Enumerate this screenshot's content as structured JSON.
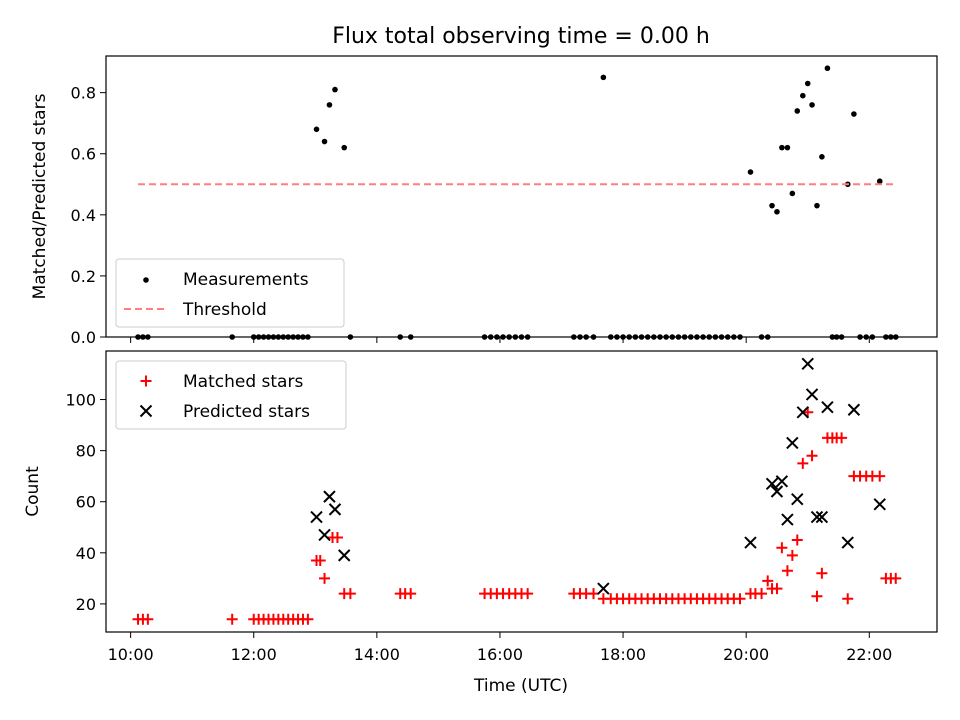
{
  "figure": {
    "title": "Flux total observing time = 0.00 h",
    "xlabel": "Time (UTC)"
  },
  "chart_data": [
    {
      "panel": "top",
      "type": "scatter",
      "ylabel": "Matched/Predicted stars",
      "xlim": [
        9.6,
        23.1
      ],
      "ylim": [
        0,
        0.92
      ],
      "yticks": [
        0.0,
        0.2,
        0.4,
        0.6,
        0.8
      ],
      "ytick_labels": [
        "0.0",
        "0.2",
        "0.4",
        "0.6",
        "0.8"
      ],
      "legend_position": "lower-left",
      "series": [
        {
          "name": "Measurements",
          "marker": "dot",
          "color": "#000000",
          "x": [
            10.12,
            10.2,
            10.28,
            11.65,
            12.0,
            12.08,
            12.16,
            12.24,
            12.32,
            12.4,
            12.48,
            12.56,
            12.64,
            12.72,
            12.8,
            12.88,
            13.02,
            13.15,
            13.23,
            13.32,
            13.47,
            13.57,
            14.38,
            14.55,
            15.75,
            15.85,
            15.95,
            16.05,
            16.15,
            16.25,
            16.35,
            16.45,
            17.2,
            17.3,
            17.4,
            17.52,
            17.68,
            17.8,
            17.9,
            18.0,
            18.1,
            18.2,
            18.3,
            18.4,
            18.5,
            18.6,
            18.7,
            18.8,
            18.9,
            19.0,
            19.1,
            19.2,
            19.3,
            19.4,
            19.5,
            19.6,
            19.7,
            19.8,
            19.9,
            20.07,
            20.25,
            20.35,
            20.42,
            20.5,
            20.58,
            20.67,
            20.75,
            20.83,
            20.92,
            21.0,
            21.07,
            21.15,
            21.23,
            21.32,
            21.4,
            21.47,
            21.55,
            21.65,
            21.75,
            21.85,
            21.95,
            22.05,
            22.17,
            22.27,
            22.35,
            22.43
          ],
          "y": [
            0,
            0,
            0,
            0,
            0,
            0,
            0,
            0,
            0,
            0,
            0,
            0,
            0,
            0,
            0,
            0,
            0.68,
            0.64,
            0.76,
            0.81,
            0.62,
            0,
            0,
            0,
            0,
            0,
            0,
            0,
            0,
            0,
            0,
            0,
            0,
            0,
            0,
            0,
            0.85,
            0,
            0,
            0,
            0,
            0,
            0,
            0,
            0,
            0,
            0,
            0,
            0,
            0,
            0,
            0,
            0,
            0,
            0,
            0,
            0,
            0,
            0,
            0.54,
            0,
            0,
            0.43,
            0.41,
            0.62,
            0.62,
            0.47,
            0.74,
            0.79,
            0.83,
            0.76,
            0.43,
            0.59,
            0.88,
            0,
            0,
            0,
            0.5,
            0.73,
            0,
            0,
            0,
            0.51,
            0,
            0,
            0
          ]
        },
        {
          "name": "Threshold",
          "type": "line",
          "style": "dashed",
          "color": "#ff7f7f",
          "x": [
            10.12,
            22.43
          ],
          "y": [
            0.5,
            0.5
          ]
        }
      ]
    },
    {
      "panel": "bottom",
      "type": "scatter",
      "ylabel": "Count",
      "xlim": [
        9.6,
        23.1
      ],
      "ylim": [
        9,
        119
      ],
      "yticks": [
        20,
        40,
        60,
        80,
        100
      ],
      "ytick_labels": [
        "20",
        "40",
        "60",
        "80",
        "100"
      ],
      "xticks": [
        10,
        12,
        14,
        16,
        18,
        20,
        22
      ],
      "xtick_labels": [
        "10:00",
        "12:00",
        "14:00",
        "16:00",
        "18:00",
        "20:00",
        "22:00"
      ],
      "legend_position": "upper-left",
      "series": [
        {
          "name": "Matched stars",
          "marker": "plus",
          "color": "#ff0000",
          "x": [
            10.12,
            10.2,
            10.28,
            11.65,
            12.0,
            12.08,
            12.16,
            12.24,
            12.32,
            12.4,
            12.48,
            12.56,
            12.64,
            12.72,
            12.8,
            12.88,
            13.02,
            13.08,
            13.15,
            13.28,
            13.36,
            13.47,
            13.57,
            14.38,
            14.46,
            14.55,
            15.75,
            15.85,
            15.95,
            16.05,
            16.15,
            16.25,
            16.35,
            16.45,
            17.2,
            17.3,
            17.4,
            17.52,
            17.68,
            17.8,
            17.9,
            18.0,
            18.1,
            18.2,
            18.3,
            18.4,
            18.5,
            18.6,
            18.7,
            18.8,
            18.9,
            19.0,
            19.1,
            19.2,
            19.3,
            19.4,
            19.5,
            19.6,
            19.7,
            19.8,
            19.9,
            20.07,
            20.15,
            20.25,
            20.35,
            20.42,
            20.5,
            20.58,
            20.67,
            20.75,
            20.83,
            20.92,
            21.0,
            21.07,
            21.15,
            21.23,
            21.32,
            21.4,
            21.47,
            21.55,
            21.65,
            21.75,
            21.85,
            21.95,
            22.05,
            22.17,
            22.27,
            22.35,
            22.43
          ],
          "y": [
            14,
            14,
            14,
            14,
            14,
            14,
            14,
            14,
            14,
            14,
            14,
            14,
            14,
            14,
            14,
            14,
            37,
            37,
            30,
            46,
            46,
            24,
            24,
            24,
            24,
            24,
            24,
            24,
            24,
            24,
            24,
            24,
            24,
            24,
            24,
            24,
            24,
            24,
            22,
            22,
            22,
            22,
            22,
            22,
            22,
            22,
            22,
            22,
            22,
            22,
            22,
            22,
            22,
            22,
            22,
            22,
            22,
            22,
            22,
            22,
            22,
            24,
            24,
            24,
            29,
            26,
            26,
            42,
            33,
            39,
            45,
            75,
            95,
            78,
            23,
            32,
            85,
            85,
            85,
            85,
            22,
            70,
            70,
            70,
            70,
            70,
            30,
            30,
            30
          ]
        },
        {
          "name": "Predicted stars",
          "marker": "x",
          "color": "#000000",
          "x": [
            13.02,
            13.15,
            13.23,
            13.32,
            13.47,
            17.68,
            20.07,
            20.42,
            20.5,
            20.58,
            20.67,
            20.75,
            20.83,
            20.92,
            21.0,
            21.07,
            21.15,
            21.23,
            21.32,
            21.65,
            21.75,
            22.17
          ],
          "y": [
            54,
            47,
            62,
            57,
            39,
            26,
            44,
            67,
            64,
            68,
            53,
            83,
            61,
            95,
            114,
            102,
            54,
            54,
            97,
            44,
            96,
            59
          ]
        }
      ]
    }
  ]
}
